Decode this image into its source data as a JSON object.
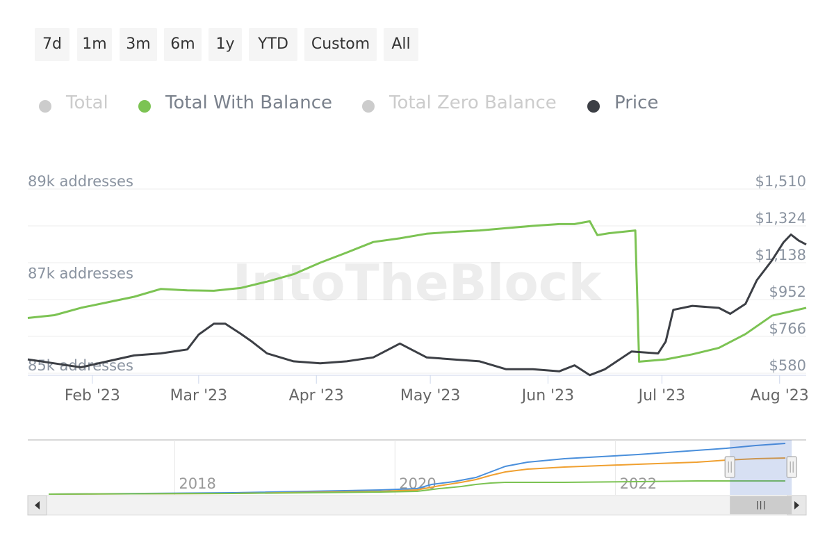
{
  "range_buttons": [
    "7d",
    "1m",
    "3m",
    "6m",
    "1y",
    "YTD",
    "Custom",
    "All"
  ],
  "legend": [
    {
      "label": "Total",
      "color": "#cccccc",
      "active": false
    },
    {
      "label": "Total With Balance",
      "color": "#7cc353",
      "active": true
    },
    {
      "label": "Total Zero Balance",
      "color": "#cccccc",
      "active": false
    },
    {
      "label": "Price",
      "color": "#3c3f45",
      "active": true
    }
  ],
  "watermark": "IntoTheBlock",
  "chart_data": {
    "type": "line",
    "x_axis": {
      "ticks": [
        "Feb '23",
        "Mar '23",
        "Apr '23",
        "May '23",
        "Jun '23",
        "Jul '23",
        "Aug '23"
      ],
      "range": [
        "2023-01-15",
        "2023-08-08"
      ]
    },
    "y_axis_left": {
      "ticks": [
        "85k addresses",
        "87k addresses",
        "89k addresses"
      ],
      "range": [
        85000,
        89000
      ]
    },
    "y_axis_right": {
      "ticks": [
        "$580",
        "$766",
        "$952",
        "$1,138",
        "$1,324",
        "$1,510"
      ],
      "range": [
        580,
        1510
      ]
    },
    "series": [
      {
        "name": "Total With Balance",
        "axis": "left",
        "color": "#7cc353",
        "points": [
          [
            "2023-01-15",
            86200
          ],
          [
            "2023-01-22",
            86260
          ],
          [
            "2023-01-29",
            86420
          ],
          [
            "2023-02-05",
            86540
          ],
          [
            "2023-02-12",
            86660
          ],
          [
            "2023-02-19",
            86830
          ],
          [
            "2023-02-26",
            86800
          ],
          [
            "2023-03-05",
            86790
          ],
          [
            "2023-03-12",
            86850
          ],
          [
            "2023-03-19",
            86990
          ],
          [
            "2023-03-26",
            87150
          ],
          [
            "2023-04-02",
            87400
          ],
          [
            "2023-04-09",
            87620
          ],
          [
            "2023-04-16",
            87850
          ],
          [
            "2023-04-23",
            87930
          ],
          [
            "2023-04-30",
            88030
          ],
          [
            "2023-05-07",
            88070
          ],
          [
            "2023-05-14",
            88100
          ],
          [
            "2023-05-21",
            88150
          ],
          [
            "2023-05-28",
            88200
          ],
          [
            "2023-06-04",
            88240
          ],
          [
            "2023-06-08",
            88240
          ],
          [
            "2023-06-12",
            88300
          ],
          [
            "2023-06-14",
            88000
          ],
          [
            "2023-06-17",
            88040
          ],
          [
            "2023-06-24",
            88100
          ],
          [
            "2023-06-25",
            85250
          ],
          [
            "2023-07-02",
            85300
          ],
          [
            "2023-07-09",
            85410
          ],
          [
            "2023-07-16",
            85550
          ],
          [
            "2023-07-23",
            85850
          ],
          [
            "2023-07-30",
            86250
          ],
          [
            "2023-08-08",
            86420
          ]
        ]
      },
      {
        "name": "Price",
        "axis": "right",
        "color": "#3c3f45",
        "points": [
          [
            "2023-01-15",
            650
          ],
          [
            "2023-01-22",
            630
          ],
          [
            "2023-01-29",
            610
          ],
          [
            "2023-02-05",
            640
          ],
          [
            "2023-02-12",
            670
          ],
          [
            "2023-02-19",
            680
          ],
          [
            "2023-02-26",
            700
          ],
          [
            "2023-03-01",
            775
          ],
          [
            "2023-03-05",
            830
          ],
          [
            "2023-03-08",
            830
          ],
          [
            "2023-03-12",
            780
          ],
          [
            "2023-03-15",
            740
          ],
          [
            "2023-03-19",
            680
          ],
          [
            "2023-03-26",
            640
          ],
          [
            "2023-04-02",
            630
          ],
          [
            "2023-04-09",
            640
          ],
          [
            "2023-04-16",
            660
          ],
          [
            "2023-04-23",
            730
          ],
          [
            "2023-04-30",
            660
          ],
          [
            "2023-05-07",
            650
          ],
          [
            "2023-05-14",
            640
          ],
          [
            "2023-05-21",
            600
          ],
          [
            "2023-05-28",
            600
          ],
          [
            "2023-06-04",
            590
          ],
          [
            "2023-06-08",
            620
          ],
          [
            "2023-06-12",
            570
          ],
          [
            "2023-06-16",
            600
          ],
          [
            "2023-06-23",
            690
          ],
          [
            "2023-06-30",
            680
          ],
          [
            "2023-07-02",
            740
          ],
          [
            "2023-07-04",
            900
          ],
          [
            "2023-07-09",
            920
          ],
          [
            "2023-07-16",
            910
          ],
          [
            "2023-07-19",
            880
          ],
          [
            "2023-07-23",
            930
          ],
          [
            "2023-07-26",
            1050
          ],
          [
            "2023-07-30",
            1150
          ],
          [
            "2023-08-02",
            1240
          ],
          [
            "2023-08-04",
            1280
          ],
          [
            "2023-08-06",
            1250
          ],
          [
            "2023-08-08",
            1230
          ]
        ]
      }
    ]
  },
  "navigator": {
    "year_labels": [
      "2018",
      "2020",
      "2022"
    ],
    "series_colors": [
      "#4a8fdb",
      "#f0a030",
      "#7cc353"
    ],
    "selection": {
      "from": "2023-01-15",
      "to": "2023-08-08"
    }
  }
}
